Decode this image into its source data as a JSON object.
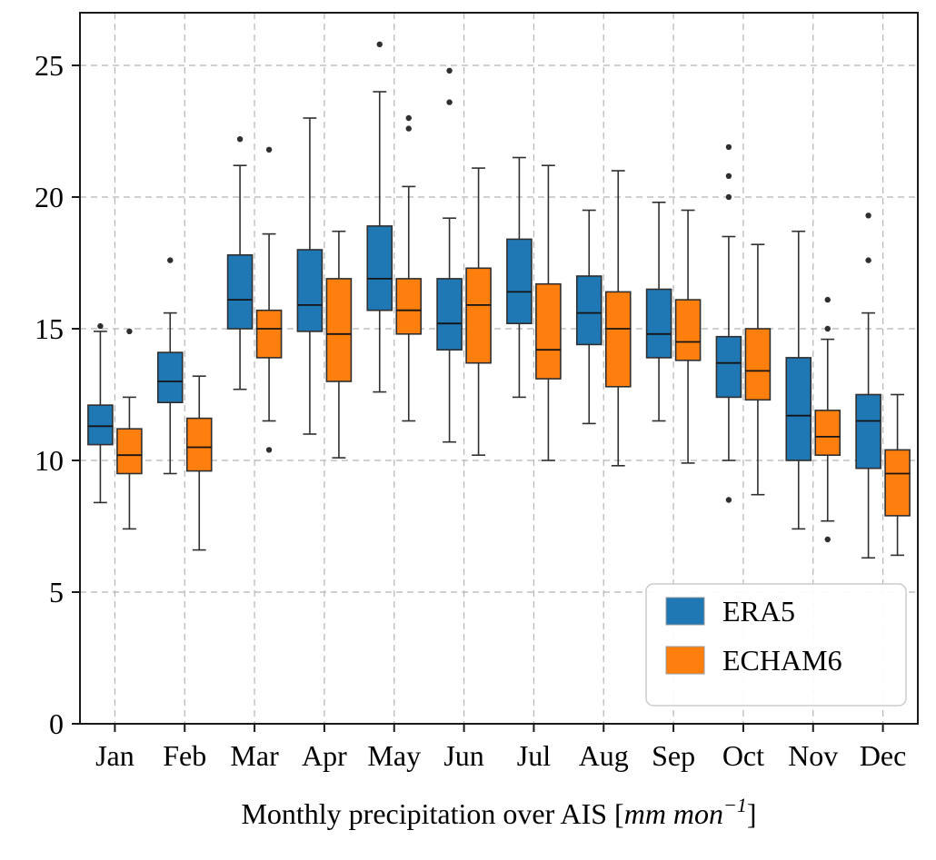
{
  "chart_data": {
    "type": "boxplot",
    "title": "",
    "categories": [
      "Jan",
      "Feb",
      "Mar",
      "Apr",
      "May",
      "Jun",
      "Jul",
      "Aug",
      "Sep",
      "Oct",
      "Nov",
      "Dec"
    ],
    "xlabel_parts": {
      "prefix": "Monthly precipitation over AIS [",
      "italic": "mm mon",
      "sup": "−1",
      "suffix": "]"
    },
    "ylabel": "",
    "ylim": [
      0,
      27
    ],
    "yticks": [
      0,
      5,
      10,
      15,
      20,
      25
    ],
    "grid": "dashed",
    "legend_position": "lower right",
    "series": [
      {
        "name": "ERA5",
        "color": "#1f77b4",
        "boxes": [
          {
            "whislo": 8.4,
            "q1": 10.6,
            "med": 11.3,
            "q3": 12.1,
            "whishi": 14.9,
            "fliers": [
              15.1
            ]
          },
          {
            "whislo": 9.5,
            "q1": 12.2,
            "med": 13.0,
            "q3": 14.1,
            "whishi": 15.6,
            "fliers": [
              17.6
            ]
          },
          {
            "whislo": 12.7,
            "q1": 15.0,
            "med": 16.1,
            "q3": 17.8,
            "whishi": 21.2,
            "fliers": [
              22.2
            ]
          },
          {
            "whislo": 11.0,
            "q1": 14.9,
            "med": 15.9,
            "q3": 18.0,
            "whishi": 23.0,
            "fliers": []
          },
          {
            "whislo": 12.6,
            "q1": 15.7,
            "med": 16.9,
            "q3": 18.9,
            "whishi": 24.0,
            "fliers": [
              25.8
            ]
          },
          {
            "whislo": 10.7,
            "q1": 14.2,
            "med": 15.2,
            "q3": 16.9,
            "whishi": 19.2,
            "fliers": [
              24.8,
              23.6
            ]
          },
          {
            "whislo": 12.4,
            "q1": 15.2,
            "med": 16.4,
            "q3": 18.4,
            "whishi": 21.5,
            "fliers": []
          },
          {
            "whislo": 11.4,
            "q1": 14.4,
            "med": 15.6,
            "q3": 17.0,
            "whishi": 19.5,
            "fliers": []
          },
          {
            "whislo": 11.5,
            "q1": 13.9,
            "med": 14.8,
            "q3": 16.5,
            "whishi": 19.8,
            "fliers": []
          },
          {
            "whislo": 10.0,
            "q1": 12.4,
            "med": 13.7,
            "q3": 14.7,
            "whishi": 18.5,
            "fliers": [
              21.9,
              20.8,
              20.0,
              8.5
            ]
          },
          {
            "whislo": 7.4,
            "q1": 10.0,
            "med": 11.7,
            "q3": 13.9,
            "whishi": 18.7,
            "fliers": []
          },
          {
            "whislo": 6.3,
            "q1": 9.7,
            "med": 11.5,
            "q3": 12.5,
            "whishi": 15.6,
            "fliers": [
              19.3,
              17.6
            ]
          }
        ]
      },
      {
        "name": "ECHAM6",
        "color": "#ff7f0e",
        "boxes": [
          {
            "whislo": 7.4,
            "q1": 9.5,
            "med": 10.2,
            "q3": 11.2,
            "whishi": 12.4,
            "fliers": [
              14.9
            ]
          },
          {
            "whislo": 6.6,
            "q1": 9.6,
            "med": 10.5,
            "q3": 11.6,
            "whishi": 13.2,
            "fliers": []
          },
          {
            "whislo": 11.5,
            "q1": 13.9,
            "med": 15.0,
            "q3": 15.7,
            "whishi": 18.6,
            "fliers": [
              21.8,
              10.4
            ]
          },
          {
            "whislo": 10.1,
            "q1": 13.0,
            "med": 14.8,
            "q3": 16.9,
            "whishi": 18.7,
            "fliers": []
          },
          {
            "whislo": 11.5,
            "q1": 14.8,
            "med": 15.7,
            "q3": 16.9,
            "whishi": 20.4,
            "fliers": [
              23.0,
              22.6
            ]
          },
          {
            "whislo": 10.2,
            "q1": 13.7,
            "med": 15.9,
            "q3": 17.3,
            "whishi": 21.1,
            "fliers": []
          },
          {
            "whislo": 10.0,
            "q1": 13.1,
            "med": 14.2,
            "q3": 16.7,
            "whishi": 21.2,
            "fliers": []
          },
          {
            "whislo": 9.8,
            "q1": 12.8,
            "med": 15.0,
            "q3": 16.4,
            "whishi": 21.0,
            "fliers": []
          },
          {
            "whislo": 9.9,
            "q1": 13.8,
            "med": 14.5,
            "q3": 16.1,
            "whishi": 19.5,
            "fliers": []
          },
          {
            "whislo": 8.7,
            "q1": 12.3,
            "med": 13.4,
            "q3": 15.0,
            "whishi": 18.2,
            "fliers": []
          },
          {
            "whislo": 7.7,
            "q1": 10.2,
            "med": 10.9,
            "q3": 11.9,
            "whishi": 14.6,
            "fliers": [
              16.1,
              15.0,
              7.0
            ]
          },
          {
            "whislo": 6.4,
            "q1": 7.9,
            "med": 9.5,
            "q3": 10.4,
            "whishi": 12.5,
            "fliers": []
          }
        ]
      }
    ]
  }
}
